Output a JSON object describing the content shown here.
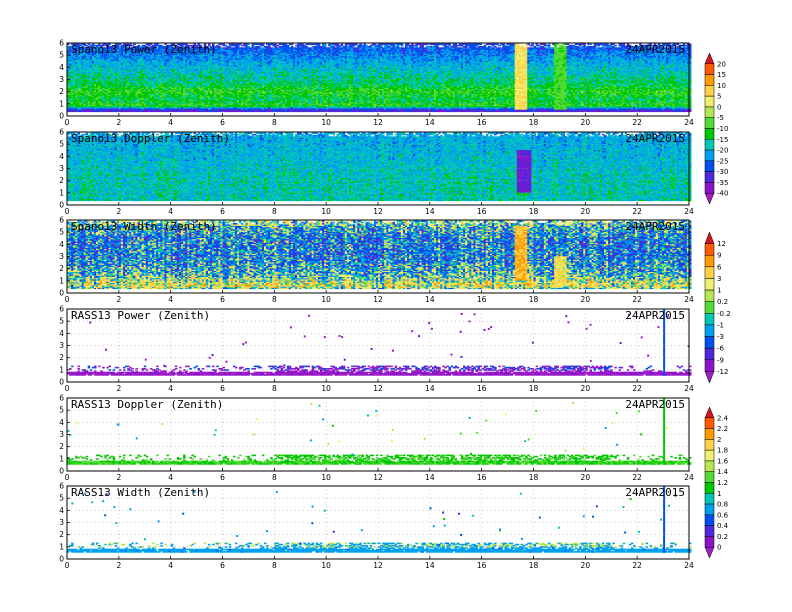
{
  "chart_data": [
    {
      "type": "heatmap",
      "title": "Spano13 Power (Zenith)",
      "date": "24APR2015",
      "x_range": [
        0,
        24
      ],
      "x_ticks": [
        0,
        2,
        4,
        6,
        8,
        10,
        12,
        14,
        16,
        18,
        20,
        22,
        24
      ],
      "y_range": [
        0,
        6
      ],
      "y_ticks": [
        0,
        1,
        2,
        3,
        4,
        5,
        6
      ],
      "colorbar_group": 0,
      "pattern": "dense",
      "profile": [
        [
          0.0,
          -35
        ],
        [
          0.5,
          -32
        ],
        [
          0.8,
          -10
        ],
        [
          1.3,
          -14
        ],
        [
          2.0,
          -10
        ],
        [
          2.6,
          -15
        ],
        [
          3.5,
          -18
        ],
        [
          4.5,
          -22
        ],
        [
          5.5,
          -27
        ],
        [
          6.0,
          -30
        ]
      ],
      "features": [
        {
          "x": 17.5,
          "y_range": [
            0.5,
            6.0
          ],
          "value": 5
        },
        {
          "x": 19.0,
          "y_range": [
            0.5,
            6.0
          ],
          "value": -8
        }
      ]
    },
    {
      "type": "heatmap",
      "title": "Spano13 Doppler (Zenith)",
      "date": "24APR2015",
      "x_range": [
        0,
        24
      ],
      "x_ticks": [
        0,
        2,
        4,
        6,
        8,
        10,
        12,
        14,
        16,
        18,
        20,
        22,
        24
      ],
      "y_range": [
        0,
        6
      ],
      "y_ticks": [
        0,
        1,
        2,
        3,
        4,
        5,
        6
      ],
      "colorbar_group": 0,
      "pattern": "dense",
      "profile": [
        [
          0.0,
          -18
        ],
        [
          2.0,
          -18
        ],
        [
          4.0,
          -20
        ],
        [
          6.0,
          -22
        ]
      ],
      "features": [
        {
          "x": 17.6,
          "y_range": [
            1.0,
            4.5
          ],
          "value": -35
        }
      ]
    },
    {
      "type": "heatmap",
      "title": "Spano13 Width (Zenith)",
      "date": "24APR2015",
      "x_range": [
        0,
        24
      ],
      "x_ticks": [
        0,
        2,
        4,
        6,
        8,
        10,
        12,
        14,
        16,
        18,
        20,
        22,
        24
      ],
      "y_range": [
        0,
        6
      ],
      "y_ticks": [
        0,
        1,
        2,
        3,
        4,
        5,
        6
      ],
      "colorbar_group": 1,
      "pattern": "dense",
      "profile": [
        [
          0.0,
          -3
        ],
        [
          0.6,
          3
        ],
        [
          1.0,
          1
        ],
        [
          1.5,
          -1
        ],
        [
          3.0,
          -3
        ],
        [
          4.5,
          -3
        ],
        [
          5.5,
          -1
        ],
        [
          6.0,
          1
        ]
      ],
      "features": [
        {
          "x": 17.5,
          "y_range": [
            1.0,
            5.5
          ],
          "value": 6
        },
        {
          "x": 19.0,
          "y_range": [
            0.5,
            3.0
          ],
          "value": 3
        }
      ]
    },
    {
      "type": "heatmap",
      "title": "RASS13 Power (Zenith)",
      "date": "24APR2015",
      "x_range": [
        0,
        24
      ],
      "x_ticks": [
        0,
        2,
        4,
        6,
        8,
        10,
        12,
        14,
        16,
        18,
        20,
        22,
        24
      ],
      "y_range": [
        0,
        6
      ],
      "y_ticks": [
        0,
        1,
        2,
        3,
        4,
        5,
        6
      ],
      "colorbar_group": 1,
      "pattern": "band",
      "band": [
        0.55,
        1.3
      ],
      "band_value": -12,
      "band_alt_value": -6,
      "features": [
        {
          "x": 23.0,
          "y_range": [
            0.5,
            6.0
          ],
          "value": -5
        }
      ]
    },
    {
      "type": "heatmap",
      "title": "RASS13 Doppler (Zenith)",
      "date": "24APR2015",
      "x_range": [
        0,
        24
      ],
      "x_ticks": [
        0,
        2,
        4,
        6,
        8,
        10,
        12,
        14,
        16,
        18,
        20,
        22,
        24
      ],
      "y_range": [
        0,
        6
      ],
      "y_ticks": [
        0,
        1,
        2,
        3,
        4,
        5,
        6
      ],
      "colorbar_group": 2,
      "pattern": "band",
      "band": [
        0.55,
        1.3
      ],
      "band_value": 1.2,
      "band_alt_value": 1.0,
      "features": [
        {
          "x": 23.0,
          "y_range": [
            0.5,
            6.0
          ],
          "value": 1.1
        }
      ]
    },
    {
      "type": "heatmap",
      "title": "RASS13 Width (Zenith)",
      "date": "24APR2015",
      "x_range": [
        0,
        24
      ],
      "x_ticks": [
        0,
        2,
        4,
        6,
        8,
        10,
        12,
        14,
        16,
        18,
        20,
        22,
        24
      ],
      "y_range": [
        0,
        6
      ],
      "y_ticks": [
        0,
        1,
        2,
        3,
        4,
        5,
        6
      ],
      "colorbar_group": 2,
      "pattern": "band",
      "band": [
        0.55,
        1.3
      ],
      "band_value": 0.7,
      "band_alt_value": 1.4,
      "features": [
        {
          "x": 23.0,
          "y_range": [
            0.5,
            6.0
          ],
          "value": 0.5
        }
      ]
    }
  ],
  "colorbars": [
    {
      "labels": [
        "20",
        "15",
        "10",
        "5",
        "0",
        "-5",
        "-10",
        "-15",
        "-20",
        "-25",
        "-30",
        "-35",
        "-40"
      ],
      "values": [
        20,
        15,
        10,
        5,
        0,
        -5,
        -10,
        -15,
        -20,
        -25,
        -30,
        -35,
        -40
      ],
      "colors": [
        "#d6141e",
        "#ff5a00",
        "#ff9a00",
        "#ffd24a",
        "#f0f06e",
        "#b4e650",
        "#50dc32",
        "#00c800",
        "#00c8b4",
        "#00a0f0",
        "#0050f0",
        "#5028dc",
        "#8c14c8",
        "#a01ec8"
      ]
    },
    {
      "labels": [
        "12",
        "9",
        "6",
        "3",
        "1",
        "0.2",
        "-0.2",
        "-1",
        "-3",
        "-6",
        "-9",
        "-12"
      ],
      "values": [
        12,
        9,
        6,
        3,
        1,
        0.2,
        -0.2,
        -1,
        -3,
        -6,
        -9,
        -12
      ],
      "colors": [
        "#d6141e",
        "#ff5a00",
        "#ff9a00",
        "#ffd24a",
        "#f0f06e",
        "#b4e650",
        "#50dc32",
        "#00c8b4",
        "#00a0f0",
        "#0050f0",
        "#5028dc",
        "#8c14c8",
        "#a01ec8"
      ]
    },
    {
      "labels": [
        "2.4",
        "2.2",
        "2",
        "1.8",
        "1.6",
        "1.4",
        "1.2",
        "1",
        "0.8",
        "0.6",
        "0.4",
        "0.2",
        "0"
      ],
      "values": [
        2.4,
        2.2,
        2,
        1.8,
        1.6,
        1.4,
        1.2,
        1,
        0.8,
        0.6,
        0.4,
        0.2,
        0
      ],
      "colors": [
        "#d6141e",
        "#ff5a00",
        "#ff9a00",
        "#ffd24a",
        "#f0f06e",
        "#b4e650",
        "#50dc32",
        "#00c800",
        "#00c8b4",
        "#00a0f0",
        "#0050f0",
        "#5028dc",
        "#8c14c8",
        "#a01ec8"
      ]
    }
  ]
}
